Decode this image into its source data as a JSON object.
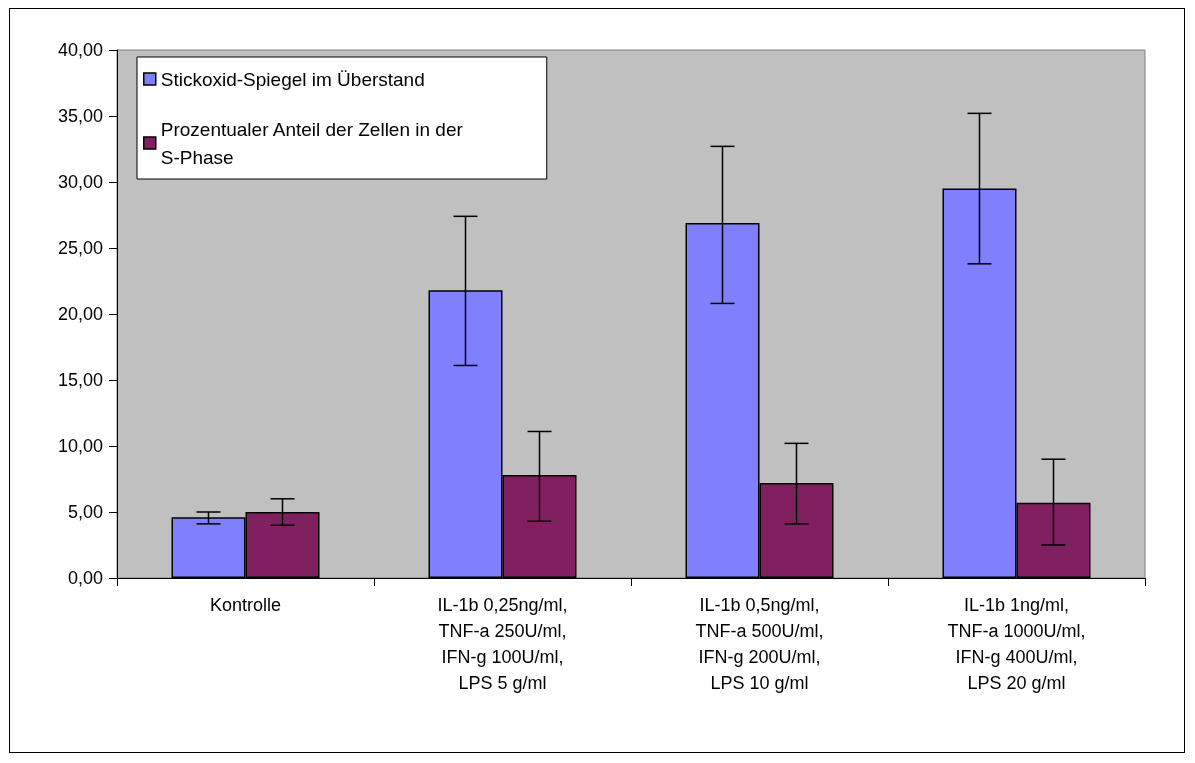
{
  "chart_data": {
    "type": "bar",
    "categories": [
      "Kontrolle",
      "IL-1b 0,25ng/ml,\nTNF-a 250U/ml,\nIFN-g 100U/ml,\nLPS 5 g/ml",
      "IL-1b 0,5ng/ml,\nTNF-a 500U/ml,\nIFN-g 200U/ml,\nLPS 10 g/ml",
      "IL-1b 1ng/ml,\nTNF-a 1000U/ml,\nIFN-g 400U/ml,\nLPS 20 g/ml"
    ],
    "series": [
      {
        "name": "Stickoxid-Spiegel im Überstand",
        "color": "#8080ff",
        "values": [
          4.6,
          21.8,
          26.9,
          29.5
        ],
        "errors": [
          [
            4.1,
            5.0
          ],
          [
            16.1,
            27.4
          ],
          [
            20.8,
            32.7
          ],
          [
            23.8,
            35.2
          ]
        ]
      },
      {
        "name": "Prozentualer Anteil der Zellen in der S-Phase",
        "color": "#802060",
        "values": [
          5.0,
          7.8,
          7.2,
          5.7
        ],
        "errors": [
          [
            4.0,
            6.0
          ],
          [
            4.3,
            11.1
          ],
          [
            4.1,
            10.2
          ],
          [
            2.5,
            9.0
          ]
        ]
      }
    ],
    "ylim": [
      0,
      40
    ],
    "yticks": [
      {
        "value": 0,
        "label": "0,00"
      },
      {
        "value": 5,
        "label": "5,00"
      },
      {
        "value": 10,
        "label": "10,00"
      },
      {
        "value": 15,
        "label": "15,00"
      },
      {
        "value": 20,
        "label": "20,00"
      },
      {
        "value": 25,
        "label": "25,00"
      },
      {
        "value": 30,
        "label": "30,00"
      },
      {
        "value": 35,
        "label": "35,00"
      },
      {
        "value": 40,
        "label": "40,00"
      }
    ],
    "grid": false,
    "legend": "top left"
  }
}
